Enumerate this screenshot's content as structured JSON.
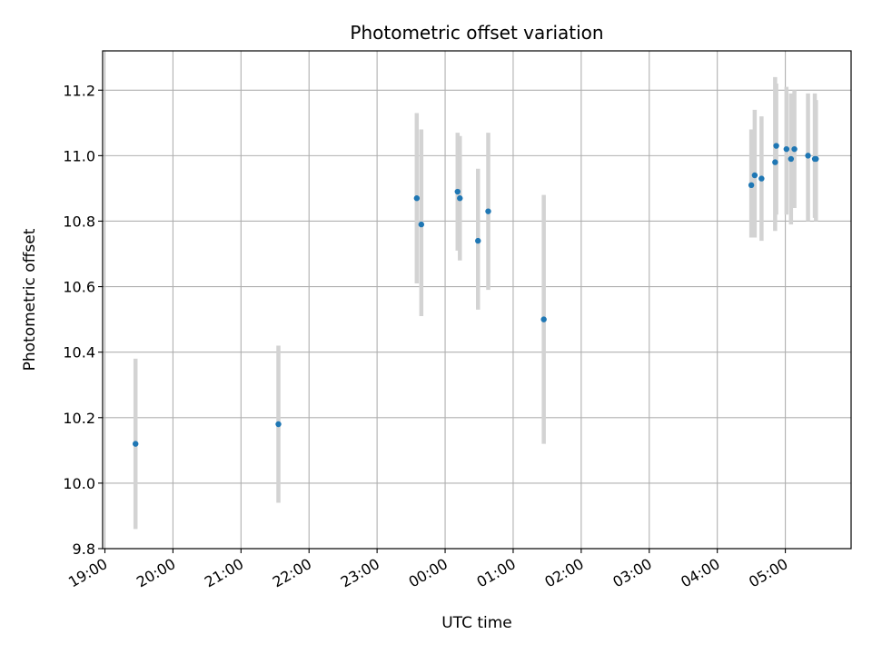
{
  "chart_data": {
    "type": "scatter",
    "title": "Photometric offset variation",
    "xlabel": "UTC time",
    "ylabel": "Photometric offset",
    "x_axis": {
      "kind": "time",
      "range": [
        "18:58",
        "05:58"
      ],
      "ticks": [
        "19:00",
        "20:00",
        "21:00",
        "22:00",
        "23:00",
        "00:00",
        "01:00",
        "02:00",
        "03:00",
        "04:00",
        "05:00"
      ],
      "tick_label_rotation_deg": 30
    },
    "ylim": [
      9.8,
      11.32
    ],
    "y_ticks": [
      "9.8",
      "10.0",
      "10.2",
      "10.4",
      "10.6",
      "10.8",
      "11.0",
      "11.2"
    ],
    "grid": true,
    "colors": {
      "point": "#1f77b4",
      "error_bar": "#d3d3d3",
      "grid": "#b0b0b0"
    },
    "series": [
      {
        "marker": "point-with-vertical-error-bar",
        "points": [
          {
            "x": "19:27",
            "y": 10.12,
            "low": 9.86,
            "high": 10.38
          },
          {
            "x": "21:33",
            "y": 10.18,
            "low": 9.94,
            "high": 10.42
          },
          {
            "x": "23:35",
            "y": 10.87,
            "low": 10.61,
            "high": 11.13
          },
          {
            "x": "23:39",
            "y": 10.79,
            "low": 10.51,
            "high": 11.08
          },
          {
            "x": "00:11",
            "y": 10.89,
            "low": 10.71,
            "high": 11.07
          },
          {
            "x": "00:13",
            "y": 10.87,
            "low": 10.68,
            "high": 11.06
          },
          {
            "x": "00:29",
            "y": 10.74,
            "low": 10.53,
            "high": 10.96
          },
          {
            "x": "00:38",
            "y": 10.83,
            "low": 10.59,
            "high": 11.07
          },
          {
            "x": "01:27",
            "y": 10.5,
            "low": 10.12,
            "high": 10.88
          },
          {
            "x": "04:30",
            "y": 10.91,
            "low": 10.75,
            "high": 11.08
          },
          {
            "x": "04:33",
            "y": 10.94,
            "low": 10.75,
            "high": 11.14
          },
          {
            "x": "04:39",
            "y": 10.93,
            "low": 10.74,
            "high": 11.12
          },
          {
            "x": "04:51",
            "y": 10.98,
            "low": 10.77,
            "high": 11.24
          },
          {
            "x": "04:52",
            "y": 11.03,
            "low": 10.82,
            "high": 11.22
          },
          {
            "x": "05:01",
            "y": 11.02,
            "low": 10.82,
            "high": 11.21
          },
          {
            "x": "05:05",
            "y": 10.99,
            "low": 10.79,
            "high": 11.19
          },
          {
            "x": "05:08",
            "y": 11.02,
            "low": 10.84,
            "high": 11.2
          },
          {
            "x": "05:20",
            "y": 11.0,
            "low": 10.8,
            "high": 11.19
          },
          {
            "x": "05:26",
            "y": 10.99,
            "low": 10.81,
            "high": 11.19
          },
          {
            "x": "05:27",
            "y": 10.99,
            "low": 10.8,
            "high": 11.17
          }
        ]
      }
    ]
  }
}
